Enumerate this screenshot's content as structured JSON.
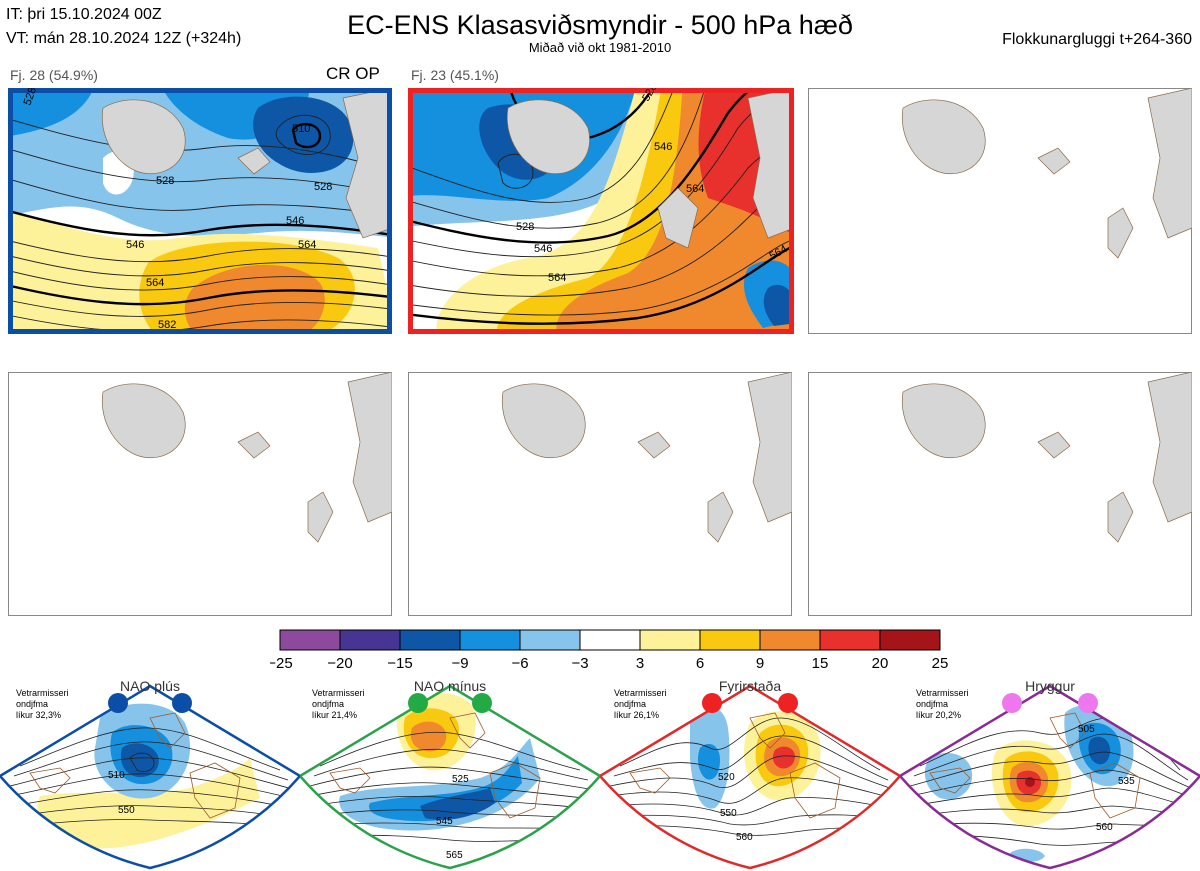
{
  "header": {
    "initial_time": "IT: þri 15.10.2024 00Z",
    "valid_time": "VT: mán 28.10.2024 12Z  (+324h)",
    "title": "EC-ENS Klasasviðsmyndir - 500 hPa hæð",
    "subtitle": "Miðað við okt 1981-2010",
    "cluster_window": "Flokkunargluggi t+264-360"
  },
  "clusters": [
    {
      "label": "Fj. 28 (54.9%)",
      "badge": "CR OP",
      "frame_color": "#0a4ea8",
      "contour_labels": [
        "528",
        "510",
        "528",
        "546",
        "546",
        "564",
        "564",
        "582",
        "528"
      ]
    },
    {
      "label": "Fj. 23 (45.1%)",
      "badge": "",
      "frame_color": "#ee2222",
      "contour_labels": [
        "528",
        "546",
        "564",
        "528",
        "546",
        "564",
        "564"
      ]
    }
  ],
  "colorbar": {
    "ticks": [
      "−25",
      "−20",
      "−15",
      "−9",
      "−6",
      "−3",
      "3",
      "6",
      "9",
      "15",
      "20",
      "25"
    ],
    "colors": [
      "#8b4a9c",
      "#463592",
      "#0d57a6",
      "#1590de",
      "#86c4ec",
      "#ffffff",
      "#fdf29a",
      "#f9c90f",
      "#f0892e",
      "#e8302c",
      "#a51419"
    ]
  },
  "regimes": [
    {
      "name": "NAO plús",
      "desc_line1": "Vetrarmisseri",
      "desc_line2": "ondjfma",
      "desc_line3": "líkur 32,3%",
      "frame_color": "#0a4ea8",
      "dot_color": "#0a4ea8",
      "contour_labels": [
        "510",
        "550"
      ]
    },
    {
      "name": "NAO mínus",
      "desc_line1": "Vetrarmisseri",
      "desc_line2": "ondjfma",
      "desc_line3": "líkur 21,4%",
      "frame_color": "#2aa24a",
      "dot_color": "#22aa44",
      "contour_labels": [
        "525",
        "545",
        "565"
      ]
    },
    {
      "name": "Fyrirstaða",
      "desc_line1": "Vetrarmisseri",
      "desc_line2": "ondjfma",
      "desc_line3": "líkur 26,1%",
      "frame_color": "#e02a2a",
      "dot_color": "#ee2222",
      "contour_labels": [
        "520",
        "550",
        "560"
      ]
    },
    {
      "name": "Hryggur",
      "desc_line1": "Vetrarmisseri",
      "desc_line2": "ondjfma",
      "desc_line3": "líkur 20,2%",
      "frame_color": "#8a2a96",
      "dot_color": "#ee77ee",
      "contour_labels": [
        "505",
        "535",
        "560"
      ]
    }
  ]
}
